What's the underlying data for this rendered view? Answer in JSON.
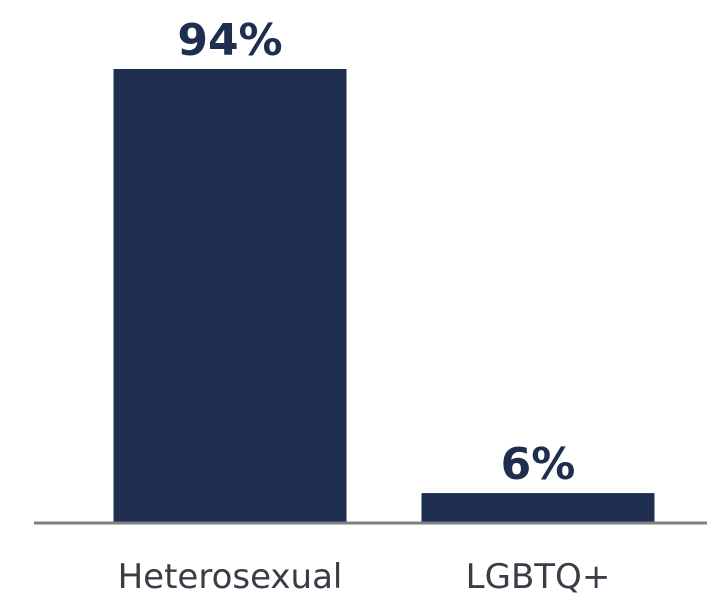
{
  "chart_data": {
    "type": "bar",
    "categories": [
      "Heterosexual",
      "LGBTQ+"
    ],
    "values": [
      94,
      6
    ],
    "value_labels": [
      "94%",
      "6%"
    ],
    "ylim": [
      0,
      94
    ],
    "grid": false,
    "legend": "none",
    "colors": {
      "bar": "#1f2e4e",
      "axis": "#7a7f88",
      "value_text": "#1f2e4e",
      "category_text": "#3a3d45"
    }
  }
}
